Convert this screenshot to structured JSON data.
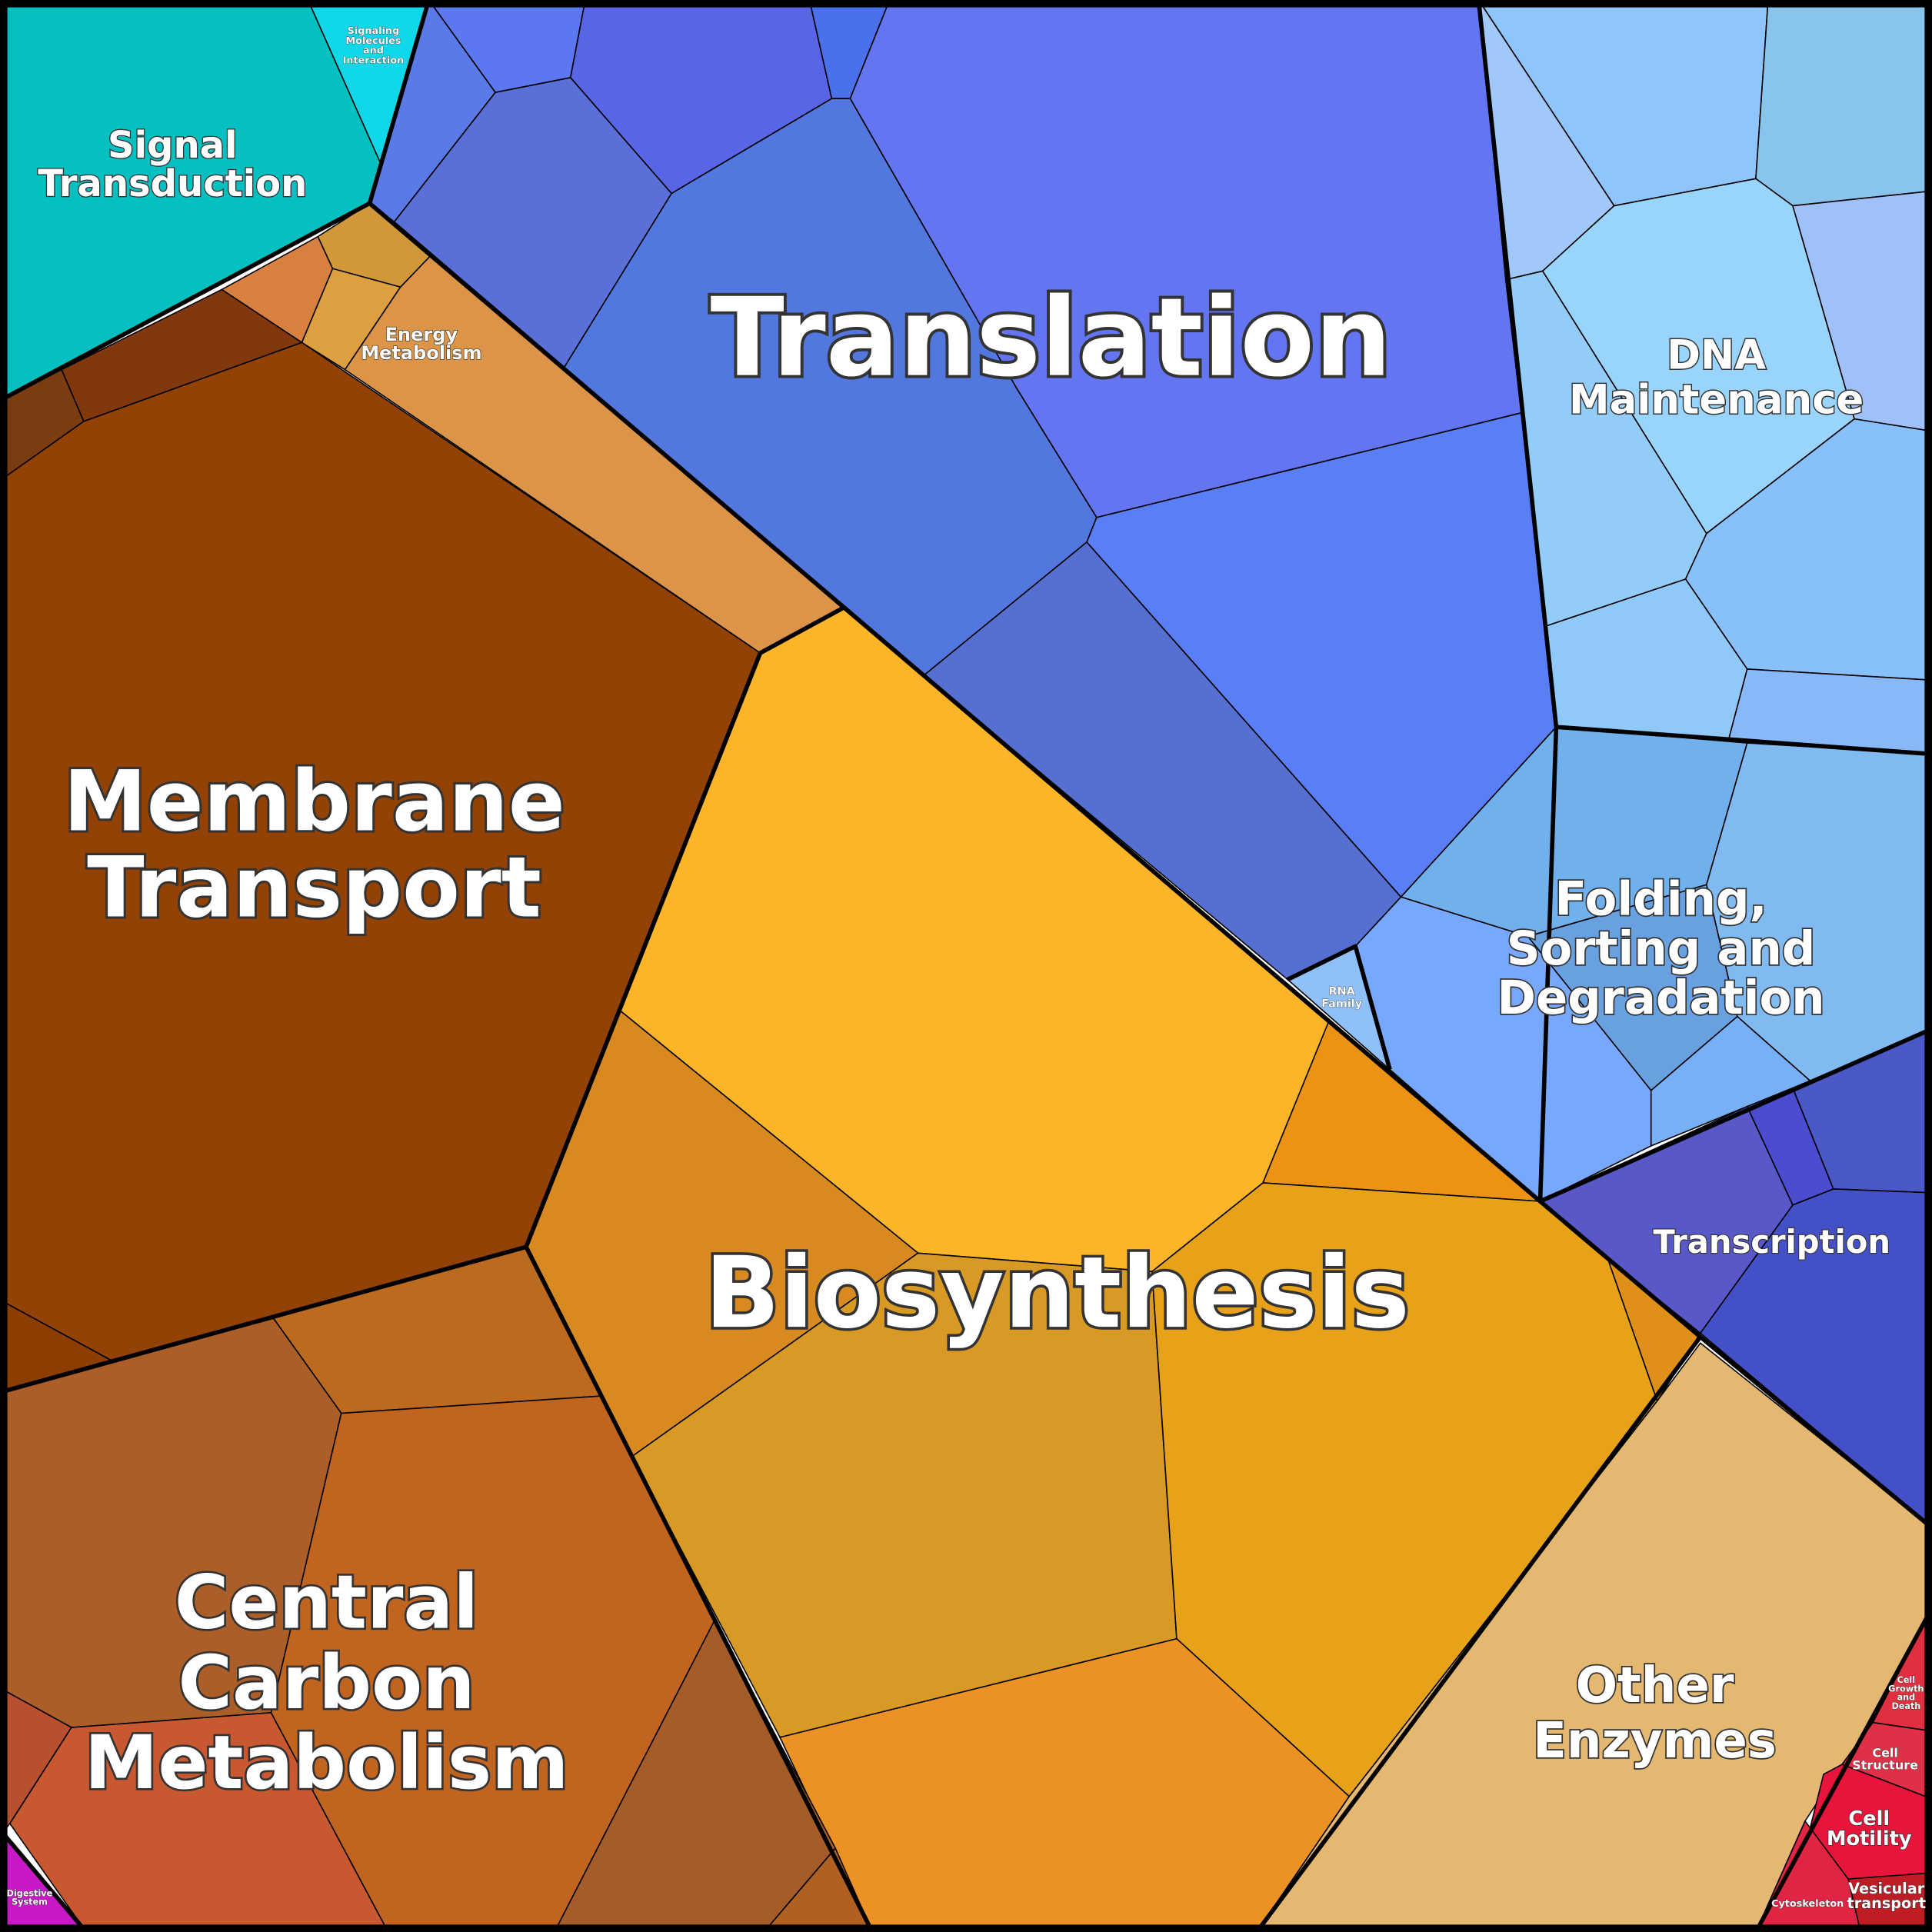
{
  "regions": [
    {
      "lines": [
        "Signal",
        "Transduction"
      ]
    },
    {
      "lines": [
        "Signaling",
        "Molecules",
        "and",
        "Interaction"
      ]
    },
    {
      "lines": [
        "Energy",
        "Metabolism"
      ]
    },
    {
      "lines": [
        "Translation"
      ]
    },
    {
      "lines": [
        "DNA",
        "Maintenance"
      ]
    },
    {
      "lines": [
        "Membrane",
        "Transport"
      ]
    },
    {
      "lines": [
        "Folding,",
        "Sorting and",
        "Degradation"
      ]
    },
    {
      "lines": [
        "RNA",
        "Family"
      ]
    },
    {
      "lines": [
        "Transcription"
      ]
    },
    {
      "lines": [
        "Biosynthesis"
      ]
    },
    {
      "lines": [
        "Central",
        "Carbon",
        "Metabolism"
      ]
    },
    {
      "lines": [
        "Other",
        "Enzymes"
      ]
    },
    {
      "lines": [
        "Cell",
        "Growth",
        "and",
        "Death"
      ]
    },
    {
      "lines": [
        "Cell",
        "Structure"
      ]
    },
    {
      "lines": [
        "Cell",
        "Motility"
      ]
    },
    {
      "lines": [
        "Vesicular",
        "transport"
      ]
    },
    {
      "lines": [
        "Cytoskeleton"
      ]
    },
    {
      "lines": [
        "Digestive",
        "System"
      ]
    }
  ]
}
